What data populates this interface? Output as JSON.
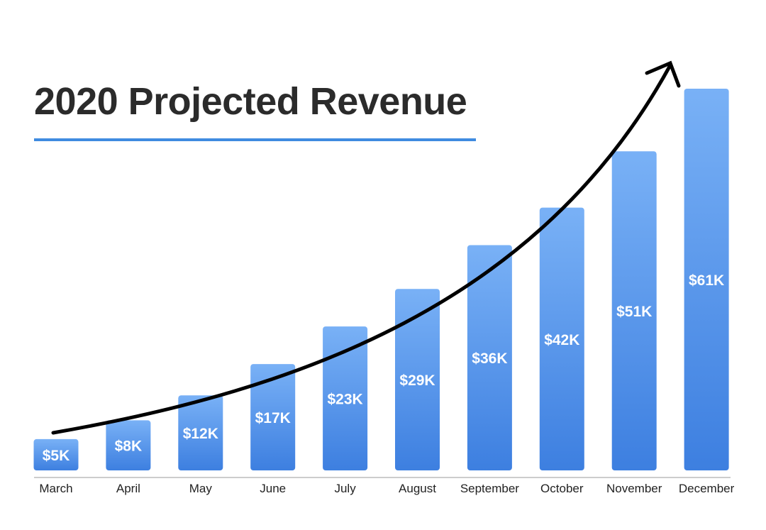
{
  "chart_data": {
    "type": "bar",
    "title": "2020 Projected Revenue",
    "xlabel": "",
    "ylabel": "",
    "categories": [
      "March",
      "April",
      "May",
      "June",
      "July",
      "August",
      "September",
      "October",
      "November",
      "December"
    ],
    "values": [
      5,
      8,
      12,
      17,
      23,
      29,
      36,
      42,
      51,
      61
    ],
    "value_labels": [
      "$5K",
      "$8K",
      "$12K",
      "$17K",
      "$23K",
      "$29K",
      "$36K",
      "$42K",
      "$51K",
      "$61K"
    ],
    "unit": "$K",
    "ylim": [
      0,
      61
    ],
    "grid": false,
    "legend": "none",
    "annotation": "upward trend arrow",
    "colors": {
      "bar_top": "#79b1f6",
      "bar_bottom": "#3d7fe0",
      "title": "#2b2b2b",
      "underline": "#3f8be0",
      "axis": "#9a9a9a",
      "arrow": "#000000",
      "bar_label": "#ffffff",
      "tick_label": "#222222"
    }
  }
}
